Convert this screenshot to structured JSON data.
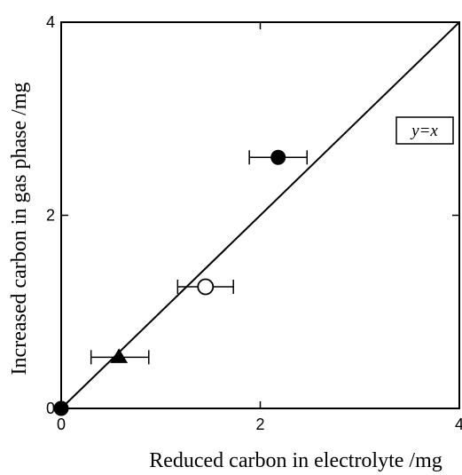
{
  "chart_data": {
    "type": "scatter",
    "xlabel": "Reduced carbon in electrolyte /mg",
    "ylabel": "Increased carbon in gas phase /mg",
    "xlim": [
      0,
      4
    ],
    "ylim": [
      0,
      4
    ],
    "x_ticks": [
      0,
      2,
      4
    ],
    "y_ticks": [
      0,
      2,
      4
    ],
    "x_tick_labels": [
      "0",
      "2",
      "4"
    ],
    "y_tick_labels": [
      "0",
      "2",
      "4"
    ],
    "grid": false,
    "reference_line": {
      "label": "y=x",
      "from": [
        0,
        0
      ],
      "to": [
        4,
        4
      ]
    },
    "legend_position": "top-right",
    "points": [
      {
        "x": 0.0,
        "y": 0.0,
        "marker": "filled-circle",
        "xerr": null
      },
      {
        "x": 0.58,
        "y": 0.53,
        "marker": "filled-triangle",
        "xerr": [
          0.3,
          0.88
        ]
      },
      {
        "x": 1.45,
        "y": 1.26,
        "marker": "open-circle",
        "xerr": [
          1.17,
          1.73
        ]
      },
      {
        "x": 2.18,
        "y": 2.6,
        "marker": "filled-circle",
        "xerr": [
          1.89,
          2.47
        ]
      }
    ]
  }
}
